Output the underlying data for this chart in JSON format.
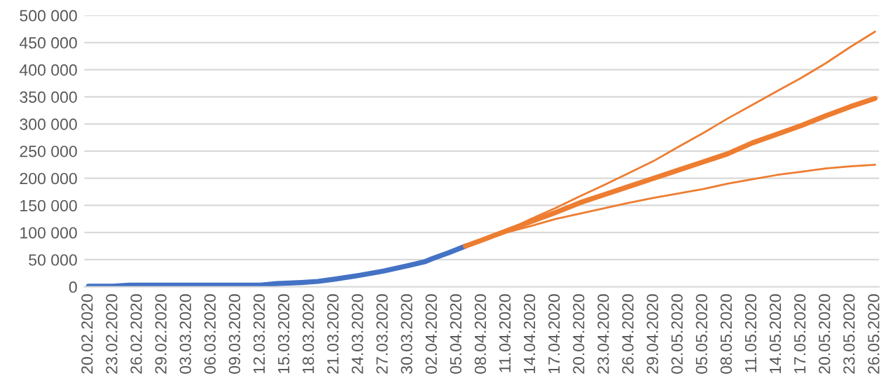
{
  "chart_data": {
    "type": "line",
    "grid": "y",
    "marker": "none",
    "line_style": "solid",
    "xlim": [
      "2020-02-19T12:00",
      "2020-05-26T12:00"
    ],
    "ylim": [
      0,
      500000
    ],
    "yticks": [
      {
        "value": 0,
        "label": "0"
      },
      {
        "value": 50000,
        "label": "50 000"
      },
      {
        "value": 100000,
        "label": "100 000"
      },
      {
        "value": 150000,
        "label": "150 000"
      },
      {
        "value": 200000,
        "label": "200 000"
      },
      {
        "value": 250000,
        "label": "250 000"
      },
      {
        "value": 300000,
        "label": "300 000"
      },
      {
        "value": 350000,
        "label": "350 000"
      },
      {
        "value": 400000,
        "label": "400 000"
      },
      {
        "value": 450000,
        "label": "450 000"
      },
      {
        "value": 500000,
        "label": "500 000"
      }
    ],
    "xticks": [
      {
        "value": "2020-02-20",
        "label": "20.02.2020"
      },
      {
        "value": "2020-02-23",
        "label": "23.02.2020"
      },
      {
        "value": "2020-02-26",
        "label": "26.02.2020"
      },
      {
        "value": "2020-02-29",
        "label": "29.02.2020"
      },
      {
        "value": "2020-03-03",
        "label": "03.03.2020"
      },
      {
        "value": "2020-03-06",
        "label": "06.03.2020"
      },
      {
        "value": "2020-03-09",
        "label": "09.03.2020"
      },
      {
        "value": "2020-03-12",
        "label": "12.03.2020"
      },
      {
        "value": "2020-03-15",
        "label": "15.03.2020"
      },
      {
        "value": "2020-03-18",
        "label": "18.03.2020"
      },
      {
        "value": "2020-03-21",
        "label": "21.03.2020"
      },
      {
        "value": "2020-03-24",
        "label": "24.03.2020"
      },
      {
        "value": "2020-03-27",
        "label": "27.03.2020"
      },
      {
        "value": "2020-03-30",
        "label": "30.03.2020"
      },
      {
        "value": "2020-04-02",
        "label": "02.04.2020"
      },
      {
        "value": "2020-04-05",
        "label": "05.04.2020"
      },
      {
        "value": "2020-04-08",
        "label": "08.04.2020"
      },
      {
        "value": "2020-04-11",
        "label": "11.04.2020"
      },
      {
        "value": "2020-04-14",
        "label": "14.04.2020"
      },
      {
        "value": "2020-04-17",
        "label": "17.04.2020"
      },
      {
        "value": "2020-04-20",
        "label": "20.04.2020"
      },
      {
        "value": "2020-04-23",
        "label": "23.04.2020"
      },
      {
        "value": "2020-04-26",
        "label": "26.04.2020"
      },
      {
        "value": "2020-04-29",
        "label": "29.04.2020"
      },
      {
        "value": "2020-05-02",
        "label": "02.05.2020"
      },
      {
        "value": "2020-05-05",
        "label": "05.05.2020"
      },
      {
        "value": "2020-05-08",
        "label": "08.05.2020"
      },
      {
        "value": "2020-05-11",
        "label": "11.05.2020"
      },
      {
        "value": "2020-05-14",
        "label": "14.05.2020"
      },
      {
        "value": "2020-05-17",
        "label": "17.05.2020"
      },
      {
        "value": "2020-05-20",
        "label": "20.05.2020"
      },
      {
        "value": "2020-05-23",
        "label": "23.05.2020"
      },
      {
        "value": "2020-05-26",
        "label": "26.05.2020"
      }
    ],
    "series": [
      {
        "color": "#4472c4",
        "x": [
          "2020-02-20",
          "2020-02-23",
          "2020-02-25",
          "2020-03-12",
          "2020-03-14",
          "2020-03-17",
          "2020-03-19",
          "2020-03-21",
          "2020-03-24",
          "2020-03-27",
          "2020-03-30",
          "2020-04-01",
          "2020-04-02",
          "2020-04-04",
          "2020-04-06"
        ],
        "values": [
          1000,
          1000,
          3000,
          3000,
          6000,
          8000,
          10000,
          14000,
          21000,
          29000,
          39000,
          46000,
          52000,
          63000,
          75000
        ]
      },
      {
        "color": "#ed7d31",
        "x": [
          "2020-04-06",
          "2020-04-08",
          "2020-04-11",
          "2020-04-14",
          "2020-04-17",
          "2020-04-20",
          "2020-04-23",
          "2020-04-26",
          "2020-04-29",
          "2020-05-02",
          "2020-05-05",
          "2020-05-08",
          "2020-05-11",
          "2020-05-14",
          "2020-05-17",
          "2020-05-20",
          "2020-05-23",
          "2020-05-26"
        ],
        "values": [
          75000,
          86000,
          103000,
          120000,
          137000,
          155000,
          170000,
          185000,
          200000,
          215000,
          230000,
          245000,
          265000,
          281000,
          297000,
          315000,
          332000,
          347000
        ]
      },
      {
        "color": "#ed7d31",
        "x": [
          "2020-04-06",
          "2020-04-11",
          "2020-04-14",
          "2020-04-17",
          "2020-04-20",
          "2020-04-23",
          "2020-04-26",
          "2020-04-29",
          "2020-05-02",
          "2020-05-05",
          "2020-05-08",
          "2020-05-11",
          "2020-05-14",
          "2020-05-17",
          "2020-05-20",
          "2020-05-23",
          "2020-05-26"
        ],
        "values": [
          75000,
          103000,
          125000,
          145000,
          167000,
          188000,
          210000,
          232000,
          258000,
          283000,
          310000,
          335000,
          360000,
          385000,
          412000,
          442000,
          470000
        ]
      },
      {
        "color": "#ed7d31",
        "x": [
          "2020-04-06",
          "2020-04-11",
          "2020-04-14",
          "2020-04-17",
          "2020-04-20",
          "2020-04-23",
          "2020-04-26",
          "2020-04-29",
          "2020-05-02",
          "2020-05-05",
          "2020-05-08",
          "2020-05-11",
          "2020-05-14",
          "2020-05-17",
          "2020-05-20",
          "2020-05-23",
          "2020-05-26"
        ],
        "values": [
          75000,
          100000,
          112000,
          125000,
          135000,
          145000,
          155000,
          164000,
          172000,
          180000,
          190000,
          198000,
          206000,
          212000,
          218000,
          222000,
          225000
        ]
      }
    ]
  }
}
